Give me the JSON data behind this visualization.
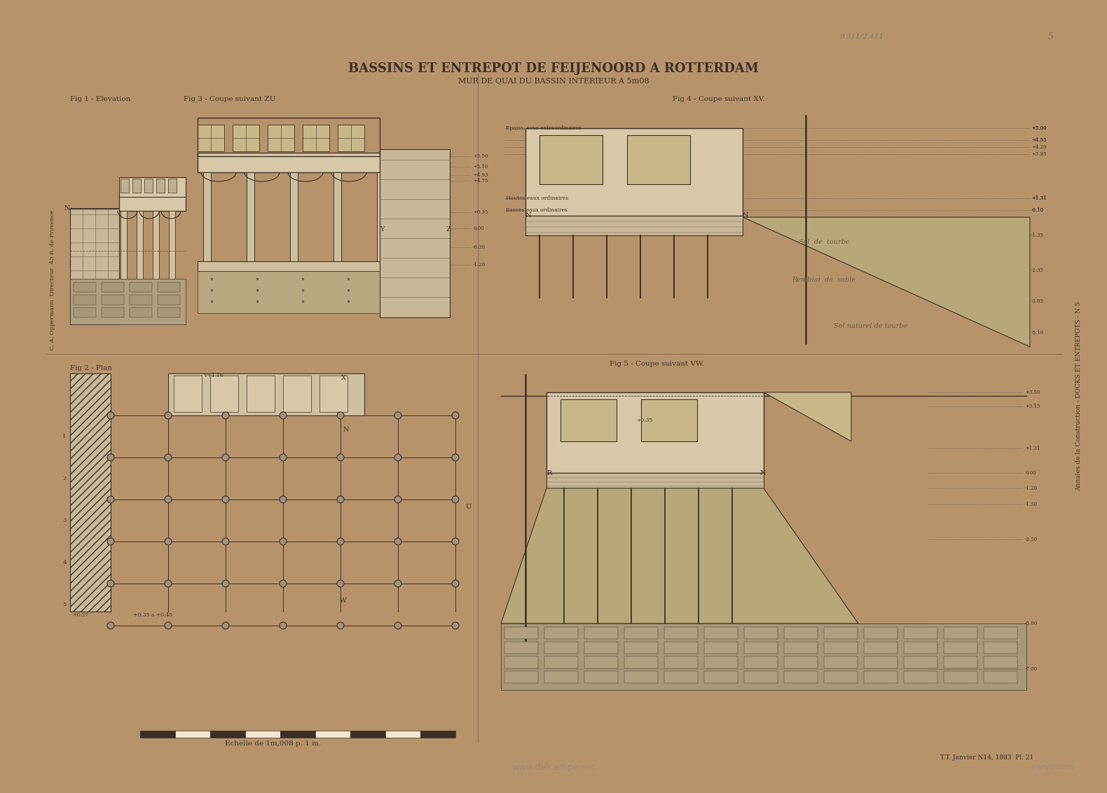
{
  "title_main": "BASSINS ET ENTREPOT DE FEIJENOORD A ROTTERDAM",
  "title_sub": "MUR DE QUAI DU BASSIN INTERIEUR A 5m08",
  "fig1_label": "Fig 1 - Elevation",
  "fig2_label": "Fig 3 - Coupe suivant ZU",
  "fig3_label": "Fig 2 - Plan",
  "fig4_label": "Fig 4 - Coupe suivant XV.",
  "fig5_label": "Fig 5 - Coupe suivant VW.",
  "scale_text": "Echelle de 1m,008 p. 1 m.",
  "watermark_text": "www.delcampe.net",
  "watermark2_text": "jeanyonremy",
  "publisher_right": "Annales de la Construction - DOCKS ET ENTREPOTS - N 5",
  "publisher_left": "C. A. Oppermann  Directeur  43 R. de Provence",
  "footer_right": "T.T. Janvier N14, 1883  Pl. 21",
  "handwrite1": "9.311/2.411",
  "handwrite2": "5",
  "bg_outer_color": "#b8936a",
  "drawing_color": "#3a3028",
  "light_drawing": "#6a5a48",
  "page_bg": "#ede4d0",
  "border_color": "#5a4a38",
  "stone_color": "#c8b898",
  "fill_color": "#d8c8a8",
  "soil_color": "#b8a878",
  "handwrite_color": "#7a7a6a",
  "grey_color": "#888888"
}
